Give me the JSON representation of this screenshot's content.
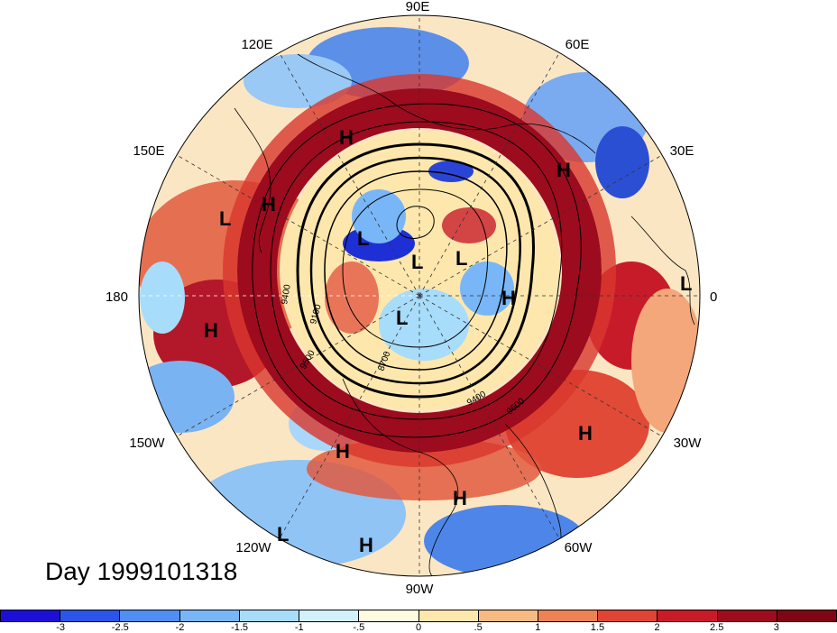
{
  "title": "Day 1999101318",
  "longitude_labels": [
    "90E",
    "60E",
    "30E",
    "0",
    "30W",
    "60W",
    "90W",
    "120W",
    "150W",
    "180",
    "150E",
    "120E"
  ],
  "pressure_systems": [
    {
      "mark": "H"
    },
    {
      "mark": "H"
    },
    {
      "mark": "L"
    },
    {
      "mark": "H"
    },
    {
      "mark": "L"
    },
    {
      "mark": "L"
    },
    {
      "mark": "L"
    },
    {
      "mark": "H"
    },
    {
      "mark": "L"
    },
    {
      "mark": "L"
    },
    {
      "mark": "H"
    },
    {
      "mark": "H"
    },
    {
      "mark": "H"
    },
    {
      "mark": "H"
    },
    {
      "mark": "L"
    },
    {
      "mark": "H"
    }
  ],
  "contour_labels": [
    "9400",
    "9100",
    "9500",
    "8700",
    "9400",
    "9600"
  ],
  "colorbar": {
    "ticks": [
      "-3",
      "-2.5",
      "-2",
      "-1.5",
      "-1",
      "-.5",
      "0",
      ".5",
      "1",
      "1.5",
      "2",
      "2.5",
      "3"
    ],
    "colors": [
      "#1e0fd6",
      "#2a55e8",
      "#4f8ef2",
      "#79b6f7",
      "#a8dcfb",
      "#d3f1fc",
      "#fffbe0",
      "#fde7ad",
      "#f7bb81",
      "#ee8254",
      "#e04434",
      "#c81b2a",
      "#9c0b1e",
      "#7f0616"
    ]
  }
}
